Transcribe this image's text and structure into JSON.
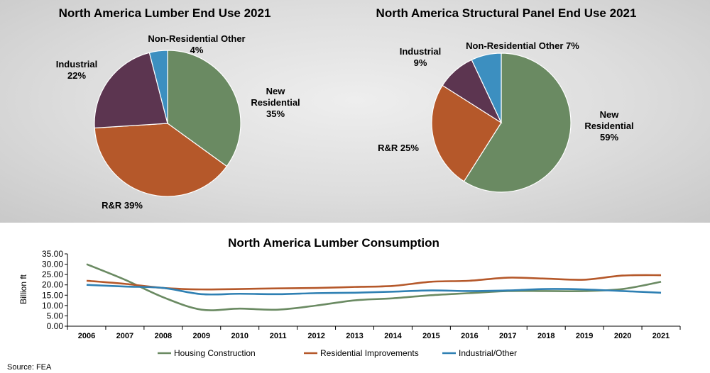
{
  "chart_data": [
    {
      "type": "pie",
      "title": "North America Lumber End Use 2021",
      "slices": [
        {
          "name": "New Residential",
          "value": 35,
          "label_lines": [
            "New",
            "Residential",
            "35%"
          ],
          "color": "#6a8a62"
        },
        {
          "name": "R&R",
          "value": 39,
          "label_lines": [
            "R&R 39%"
          ],
          "color": "#b5582a"
        },
        {
          "name": "Industrial",
          "value": 22,
          "label_lines": [
            "Industrial",
            "22%"
          ],
          "color": "#5c3550"
        },
        {
          "name": "Non-Residential Other",
          "value": 4,
          "label_lines": [
            "Non-Residential Other",
            "4%"
          ],
          "color": "#3c8fc0"
        }
      ]
    },
    {
      "type": "pie",
      "title": "North America Structural Panel End Use 2021",
      "slices": [
        {
          "name": "New Residential",
          "value": 59,
          "label_lines": [
            "New",
            "Residential",
            "59%"
          ],
          "color": "#6a8a62"
        },
        {
          "name": "R&R",
          "value": 25,
          "label_lines": [
            "R&R 25%"
          ],
          "color": "#b5582a"
        },
        {
          "name": "Industrial",
          "value": 9,
          "label_lines": [
            "Industrial",
            "9%"
          ],
          "color": "#5c3550"
        },
        {
          "name": "Non-Residential Other",
          "value": 7,
          "label_lines": [
            "Non-Residential Other 7%"
          ],
          "color": "#3c8fc0"
        }
      ]
    },
    {
      "type": "line",
      "title": "North America Lumber Consumption",
      "ylabel": "Billion ft",
      "ylim": [
        0,
        35
      ],
      "yticks": [
        "0.00",
        "5.00",
        "10.00",
        "15.00",
        "20.00",
        "25.00",
        "30.00",
        "35.00"
      ],
      "categories": [
        "2006",
        "2007",
        "2008",
        "2009",
        "2010",
        "2011",
        "2012",
        "2013",
        "2014",
        "2015",
        "2016",
        "2017",
        "2018",
        "2019",
        "2020",
        "2021"
      ],
      "series": [
        {
          "name": "Housing Construction",
          "color": "#6a8a62",
          "values": [
            30.0,
            22.5,
            14.0,
            8.0,
            8.5,
            8.0,
            10.0,
            12.5,
            13.5,
            15.0,
            16.0,
            17.0,
            17.0,
            17.0,
            18.0,
            21.5
          ]
        },
        {
          "name": "Residential Improvements",
          "color": "#b5582a",
          "values": [
            22.0,
            20.5,
            18.5,
            17.8,
            18.0,
            18.3,
            18.5,
            19.0,
            19.5,
            21.5,
            22.0,
            23.5,
            23.0,
            22.5,
            24.5,
            24.7
          ]
        },
        {
          "name": "Industrial/Other",
          "color": "#2f80b3",
          "values": [
            20.0,
            19.2,
            18.5,
            15.5,
            15.7,
            15.5,
            16.0,
            16.2,
            16.7,
            17.3,
            17.0,
            17.3,
            18.0,
            17.8,
            17.0,
            16.2
          ]
        }
      ],
      "legend_position": "bottom",
      "grid": false
    }
  ],
  "source_note": "Source: FEA"
}
